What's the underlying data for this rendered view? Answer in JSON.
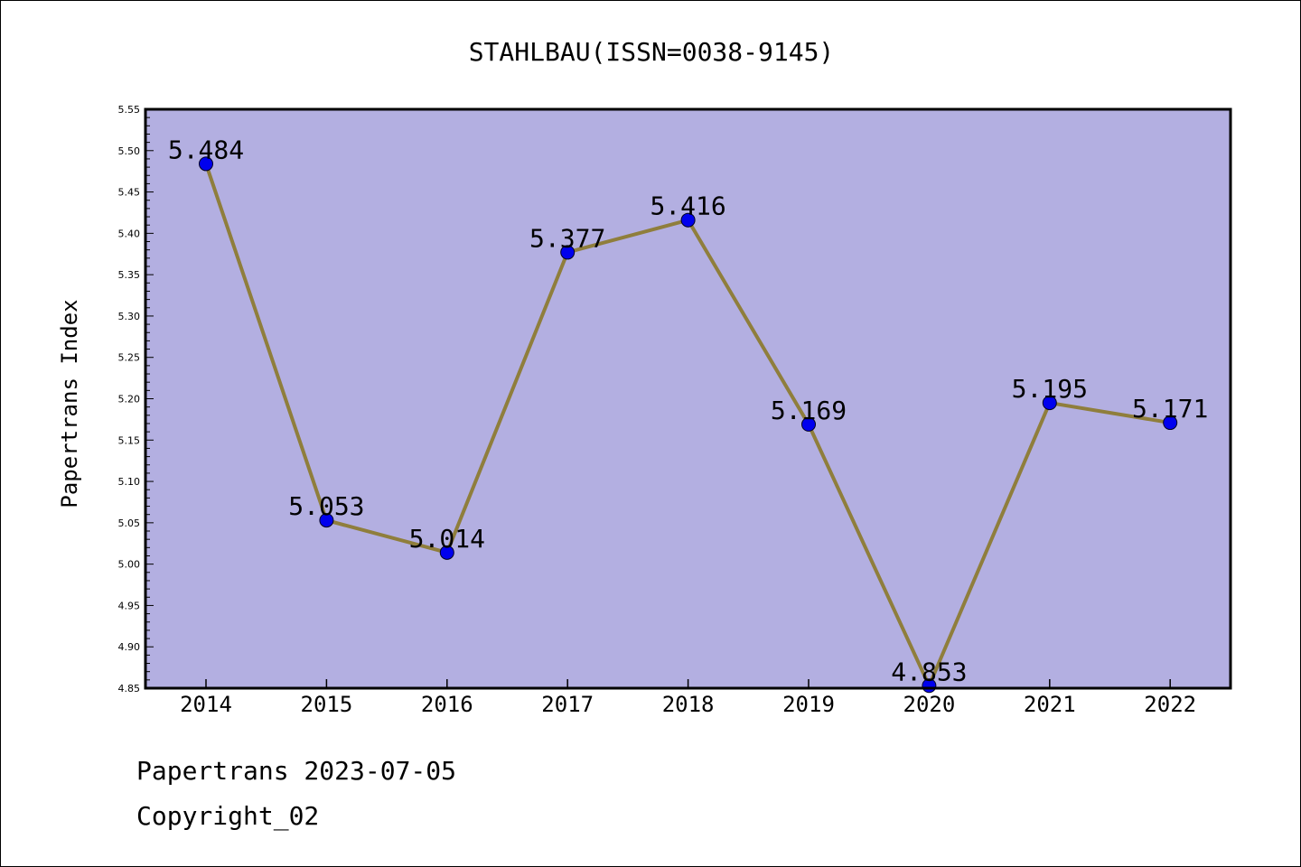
{
  "chart_data": {
    "type": "line",
    "title": "STAHLBAU(ISSN=0038-9145)",
    "xlabel": "",
    "ylabel": "Papertrans Index",
    "categories": [
      "2014",
      "2015",
      "2016",
      "2017",
      "2018",
      "2019",
      "2020",
      "2021",
      "2022"
    ],
    "values": [
      5.484,
      5.053,
      5.014,
      5.377,
      5.416,
      5.169,
      4.853,
      5.195,
      5.171
    ],
    "data_labels": [
      "5.484",
      "5.053",
      "5.014",
      "5.377",
      "5.416",
      "5.169",
      "4.853",
      "5.195",
      "5.171"
    ],
    "ylim": [
      4.85,
      5.55
    ],
    "yticks": [
      "4.85",
      "4.90",
      "4.95",
      "5.00",
      "5.05",
      "5.10",
      "5.15",
      "5.20",
      "5.25",
      "5.30",
      "5.35",
      "5.40",
      "5.45",
      "5.50",
      "5.55"
    ],
    "grid": false,
    "colors": {
      "plot_background": "#b3afe1",
      "line": "#8f7e3c",
      "marker": "#0000ee"
    }
  },
  "footer": {
    "date_line": "Papertrans 2023-07-05",
    "copyright": "Copyright_02"
  }
}
